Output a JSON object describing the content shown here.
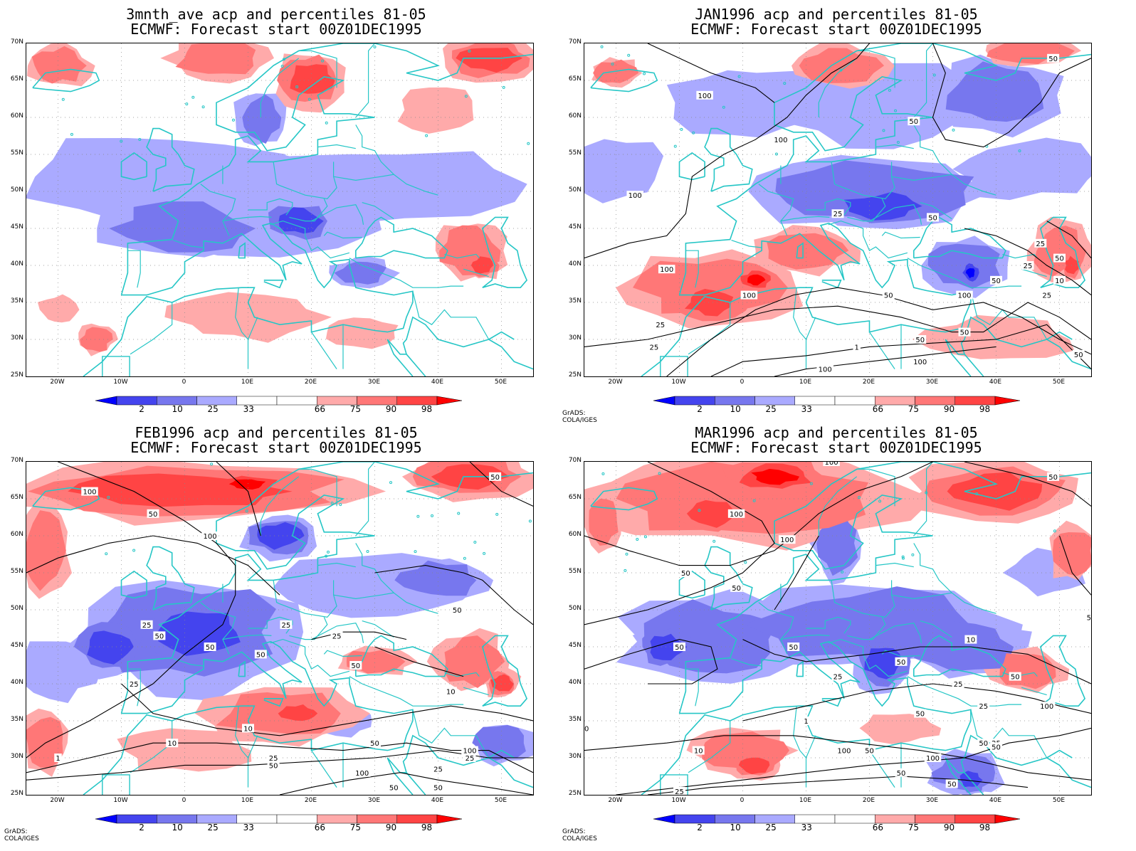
{
  "panels": [
    {
      "title1": "3mnth_ave acp and percentiles 81-05",
      "title2": "ECMWF: Forecast start 00Z01DEC1995",
      "credit": "",
      "contours": false
    },
    {
      "title1": "JAN1996 acp and percentiles 81-05",
      "title2": "ECMWF: Forecast start 00Z01DEC1995",
      "credit": "GrADS: COLA/IGES",
      "contours": true
    },
    {
      "title1": "FEB1996 acp and percentiles 81-05",
      "title2": "ECMWF: Forecast start 00Z01DEC1995",
      "credit": "GrADS: COLA/IGES",
      "contours": true
    },
    {
      "title1": "MAR1996 acp and percentiles 81-05",
      "title2": "ECMWF: Forecast start 00Z01DEC1995",
      "credit": "GrADS: COLA/IGES",
      "contours": true
    }
  ],
  "lat_labels": [
    "70N",
    "65N",
    "60N",
    "55N",
    "50N",
    "45N",
    "40N",
    "35N",
    "30N",
    "25N"
  ],
  "lon_labels": [
    "20W",
    "10W",
    "0",
    "10E",
    "20E",
    "30E",
    "40E",
    "50E"
  ],
  "colorbar": {
    "labels": [
      "2",
      "10",
      "25",
      "33",
      "66",
      "75",
      "90",
      "98"
    ],
    "colors": [
      "#0000ff",
      "#4444ee",
      "#7777ee",
      "#aaaaff",
      "#ffffff",
      "#ffaaaa",
      "#ff7777",
      "#ff4444",
      "#ff0000"
    ]
  },
  "colors": {
    "coast": "#26c6c6",
    "contour": "#000000",
    "grid": "#888888"
  },
  "contour_labels": {
    "p1": [
      "50",
      "100",
      "100",
      "100",
      "50",
      "25",
      "50",
      "100",
      "100",
      "50",
      "25",
      "25",
      "50",
      "100",
      "10",
      "50",
      "25",
      "50",
      "25",
      "50",
      "25",
      "1"
    ],
    "p2": [
      "50",
      "100",
      "100",
      "50",
      "25",
      "25",
      "50",
      "50",
      "50",
      "25",
      "50",
      "25",
      "50",
      "10",
      "50",
      "10",
      "10",
      "25",
      "1"
    ],
    "p3": [
      "100",
      "100",
      "100",
      "50",
      "50",
      "50",
      "50",
      "50",
      "50",
      "25",
      "50",
      "10",
      "25",
      "10",
      "1",
      "25",
      "50",
      "25"
    ]
  }
}
